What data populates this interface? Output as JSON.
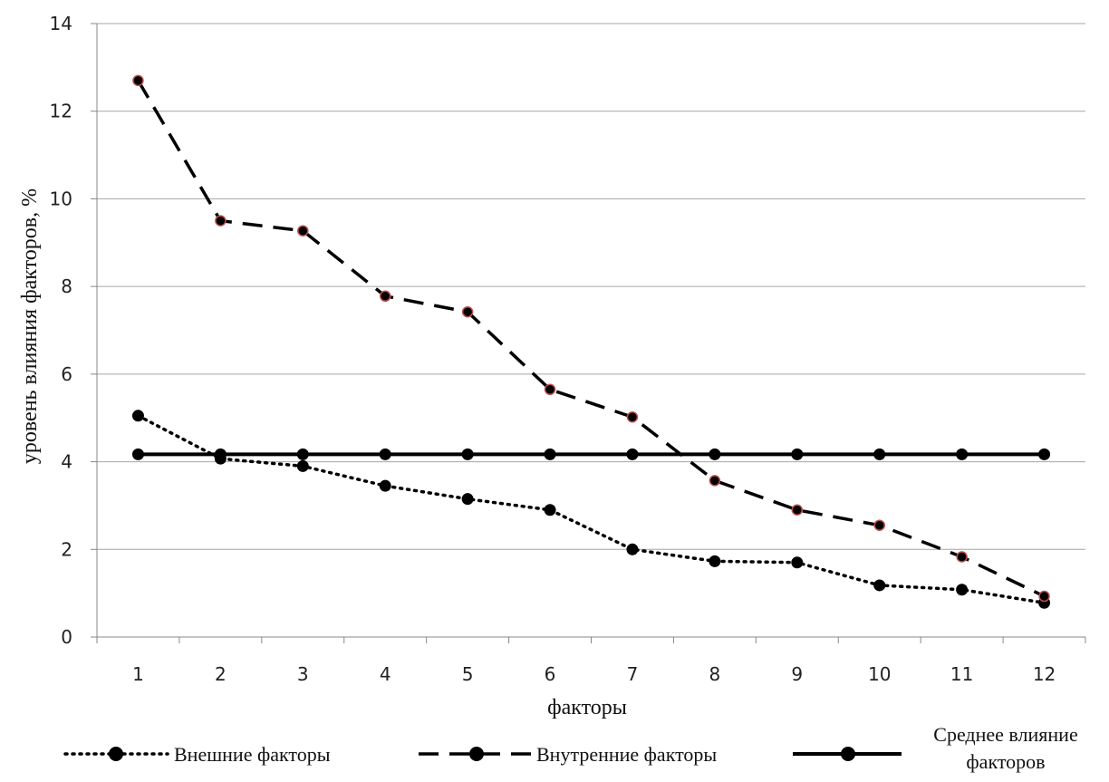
{
  "chart_data": {
    "type": "line",
    "title": "",
    "xlabel": "факторы",
    "ylabel": "уровень влияния факторов, %",
    "x": [
      1,
      2,
      3,
      4,
      5,
      6,
      7,
      8,
      9,
      10,
      11,
      12
    ],
    "xticks": [
      "1",
      "2",
      "3",
      "4",
      "5",
      "6",
      "7",
      "8",
      "9",
      "10",
      "11",
      "12"
    ],
    "yticks": [
      "0",
      "2",
      "4",
      "6",
      "8",
      "10",
      "12",
      "14"
    ],
    "ylim": [
      0,
      14
    ],
    "grid": true,
    "legend_position": "bottom",
    "series": [
      {
        "name": "Внешние факторы",
        "style": "dotted",
        "values": [
          5.05,
          4.07,
          3.9,
          3.45,
          3.15,
          2.9,
          2.0,
          1.73,
          1.7,
          1.18,
          1.08,
          0.78
        ]
      },
      {
        "name": "Внутренние факторы",
        "style": "dashed",
        "values": [
          12.7,
          9.5,
          9.27,
          7.78,
          7.42,
          5.65,
          5.02,
          3.57,
          2.9,
          2.55,
          1.83,
          0.93
        ]
      },
      {
        "name_lines": [
          "Среднее влияние",
          "факторов"
        ],
        "style": "solid",
        "values": [
          4.17,
          4.17,
          4.17,
          4.17,
          4.17,
          4.17,
          4.17,
          4.17,
          4.17,
          4.17,
          4.17,
          4.17
        ]
      }
    ],
    "colors": {
      "line": "#000000",
      "marker": "#000000",
      "marker_edge_inner": "#c0504d",
      "grid": "#a6a6a6",
      "axis": "#888888"
    }
  }
}
